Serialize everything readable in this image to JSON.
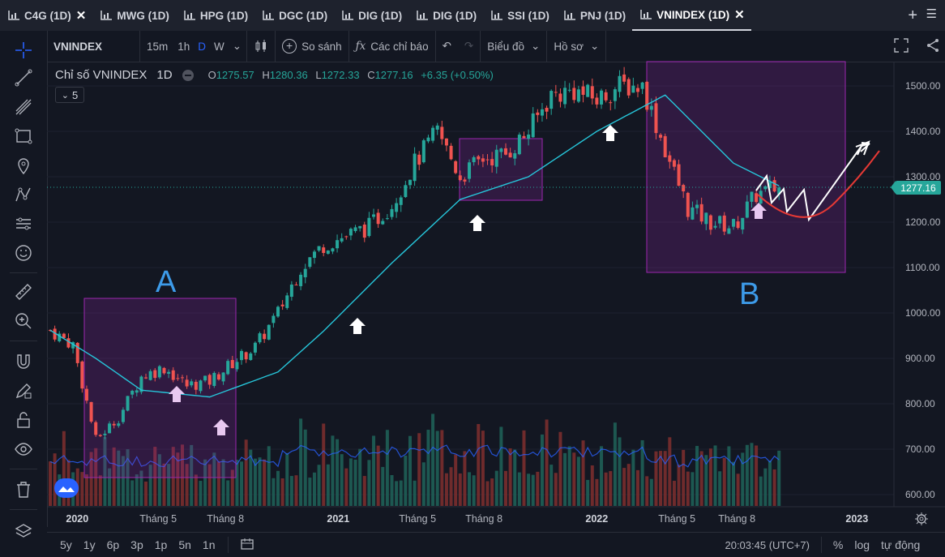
{
  "tabs": [
    {
      "label": "C4G (1D)",
      "active": false,
      "closable": true
    },
    {
      "label": "MWG (1D)",
      "active": false
    },
    {
      "label": "HPG (1D)",
      "active": false
    },
    {
      "label": "DGC (1D)",
      "active": false
    },
    {
      "label": "DIG (1D)",
      "active": false
    },
    {
      "label": "DIG (1D)",
      "active": false
    },
    {
      "label": "SSI (1D)",
      "active": false
    },
    {
      "label": "PNJ (1D)",
      "active": false
    },
    {
      "label": "VNINDEX (1D)",
      "active": true,
      "closable": true
    }
  ],
  "toolbar": {
    "symbol": "VNINDEX",
    "intervals": [
      "15m",
      "1h",
      "D",
      "W"
    ],
    "active_interval": "D",
    "compare_label": "So sánh",
    "indicators_label": "Các chỉ báo",
    "chart_label": "Biểu đồ",
    "profile_label": "Hồ sơ"
  },
  "legend": {
    "title": "Chỉ số VNINDEX",
    "timeframe": "1D",
    "o_label": "O",
    "o": "1275.57",
    "h_label": "H",
    "h": "1280.36",
    "l_label": "L",
    "l": "1272.33",
    "c_label": "C",
    "c": "1277.16",
    "change": "+6.35 (+0.50%)",
    "indicator_count": "5"
  },
  "price_label": "1277.16",
  "annotations": {
    "a": "A",
    "b": "B"
  },
  "bottom": {
    "ranges": [
      "5y",
      "1y",
      "6p",
      "3p",
      "1p",
      "5n",
      "1n"
    ],
    "time": "20:03:45 (UTC+7)",
    "percent": "%",
    "log": "log",
    "auto": "tự động"
  },
  "colors": {
    "up": "#26a69a",
    "down": "#ef5350",
    "ma": "#26c6da",
    "box": "#9c27b0",
    "accent": "#2962ff"
  },
  "chart_data": {
    "type": "candlestick",
    "y_ticks": [
      1500,
      1400,
      1300,
      1200,
      1100,
      1000,
      900,
      800,
      700,
      600
    ],
    "y_tick_labels": [
      "1500.00",
      "1400.00",
      "1300.00",
      "1200.00",
      "1100.00",
      "1000.00",
      "900.00",
      "800.00",
      "700.00",
      "600.00"
    ],
    "x_ticks": [
      "2020",
      "Tháng 5",
      "Tháng 8",
      "2021",
      "Tháng 5",
      "Tháng 8",
      "2022",
      "Tháng 5",
      "Tháng 8",
      "2023"
    ],
    "x_tick_bold": [
      true,
      false,
      false,
      true,
      false,
      false,
      true,
      false,
      false,
      true
    ],
    "close_keypoints": [
      [
        "2020-01",
        962
      ],
      [
        "2020-02",
        930
      ],
      [
        "2020-03",
        720
      ],
      [
        "2020-04",
        770
      ],
      [
        "2020-05",
        860
      ],
      [
        "2020-06",
        880
      ],
      [
        "2020-07",
        840
      ],
      [
        "2020-08",
        850
      ],
      [
        "2020-09",
        890
      ],
      [
        "2020-10",
        925
      ],
      [
        "2020-11",
        1000
      ],
      [
        "2020-12",
        1100
      ],
      [
        "2021-01",
        1150
      ],
      [
        "2021-02",
        1170
      ],
      [
        "2021-03",
        1190
      ],
      [
        "2021-04",
        1240
      ],
      [
        "2021-05",
        1330
      ],
      [
        "2021-06",
        1400
      ],
      [
        "2021-07",
        1300
      ],
      [
        "2021-08",
        1340
      ],
      [
        "2021-09",
        1350
      ],
      [
        "2021-10",
        1400
      ],
      [
        "2021-11",
        1480
      ],
      [
        "2021-12",
        1490
      ],
      [
        "2022-01",
        1470
      ],
      [
        "2022-02",
        1500
      ],
      [
        "2022-03",
        1500
      ],
      [
        "2022-04",
        1360
      ],
      [
        "2022-05",
        1230
      ],
      [
        "2022-06",
        1200
      ],
      [
        "2022-07",
        1190
      ],
      [
        "2022-08",
        1260
      ],
      [
        "2022-09",
        1277
      ]
    ],
    "ma_keypoints": [
      [
        "2020-01",
        962
      ],
      [
        "2020-03",
        900
      ],
      [
        "2020-05",
        830
      ],
      [
        "2020-08",
        815
      ],
      [
        "2020-11",
        870
      ],
      [
        "2021-01",
        960
      ],
      [
        "2021-04",
        1110
      ],
      [
        "2021-07",
        1250
      ],
      [
        "2021-10",
        1300
      ],
      [
        "2022-01",
        1400
      ],
      [
        "2022-04",
        1480
      ],
      [
        "2022-07",
        1330
      ],
      [
        "2022-09",
        1280
      ]
    ],
    "last_close": 1277.16,
    "volume_ma_note": "volume histogram with moving average line"
  }
}
